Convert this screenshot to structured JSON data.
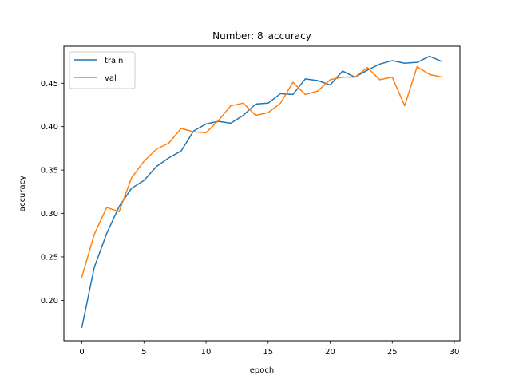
{
  "chart_data": {
    "type": "line",
    "title": "Number: 8_accuracy",
    "xlabel": "epoch",
    "ylabel": "accuracy",
    "xlim": [
      -1.45,
      30.45
    ],
    "ylim": [
      0.1535,
      0.4925
    ],
    "xticks": [
      0,
      5,
      10,
      15,
      20,
      25,
      30
    ],
    "xtick_labels": [
      "0",
      "5",
      "10",
      "15",
      "20",
      "25",
      "30"
    ],
    "yticks": [
      0.2,
      0.25,
      0.3,
      0.35,
      0.4,
      0.45
    ],
    "ytick_labels": [
      "0.20",
      "0.25",
      "0.30",
      "0.35",
      "0.40",
      "0.45"
    ],
    "grid": false,
    "legend_position": "upper-left",
    "x": [
      0,
      1,
      2,
      3,
      4,
      5,
      6,
      7,
      8,
      9,
      10,
      11,
      12,
      13,
      14,
      15,
      16,
      17,
      18,
      19,
      20,
      21,
      22,
      23,
      24,
      25,
      26,
      27,
      28,
      29
    ],
    "series": [
      {
        "name": "train",
        "color": "#1f77b4",
        "values": [
          0.169,
          0.238,
          0.277,
          0.308,
          0.329,
          0.338,
          0.354,
          0.364,
          0.372,
          0.395,
          0.403,
          0.406,
          0.404,
          0.413,
          0.426,
          0.427,
          0.438,
          0.437,
          0.455,
          0.453,
          0.448,
          0.464,
          0.457,
          0.465,
          0.472,
          0.476,
          0.473,
          0.474,
          0.481,
          0.475
        ]
      },
      {
        "name": "val",
        "color": "#ff7f0e",
        "values": [
          0.227,
          0.276,
          0.307,
          0.302,
          0.341,
          0.36,
          0.374,
          0.381,
          0.398,
          0.394,
          0.393,
          0.407,
          0.424,
          0.427,
          0.413,
          0.416,
          0.427,
          0.451,
          0.437,
          0.441,
          0.454,
          0.457,
          0.457,
          0.468,
          0.454,
          0.457,
          0.424,
          0.469,
          0.46,
          0.457
        ]
      }
    ]
  }
}
